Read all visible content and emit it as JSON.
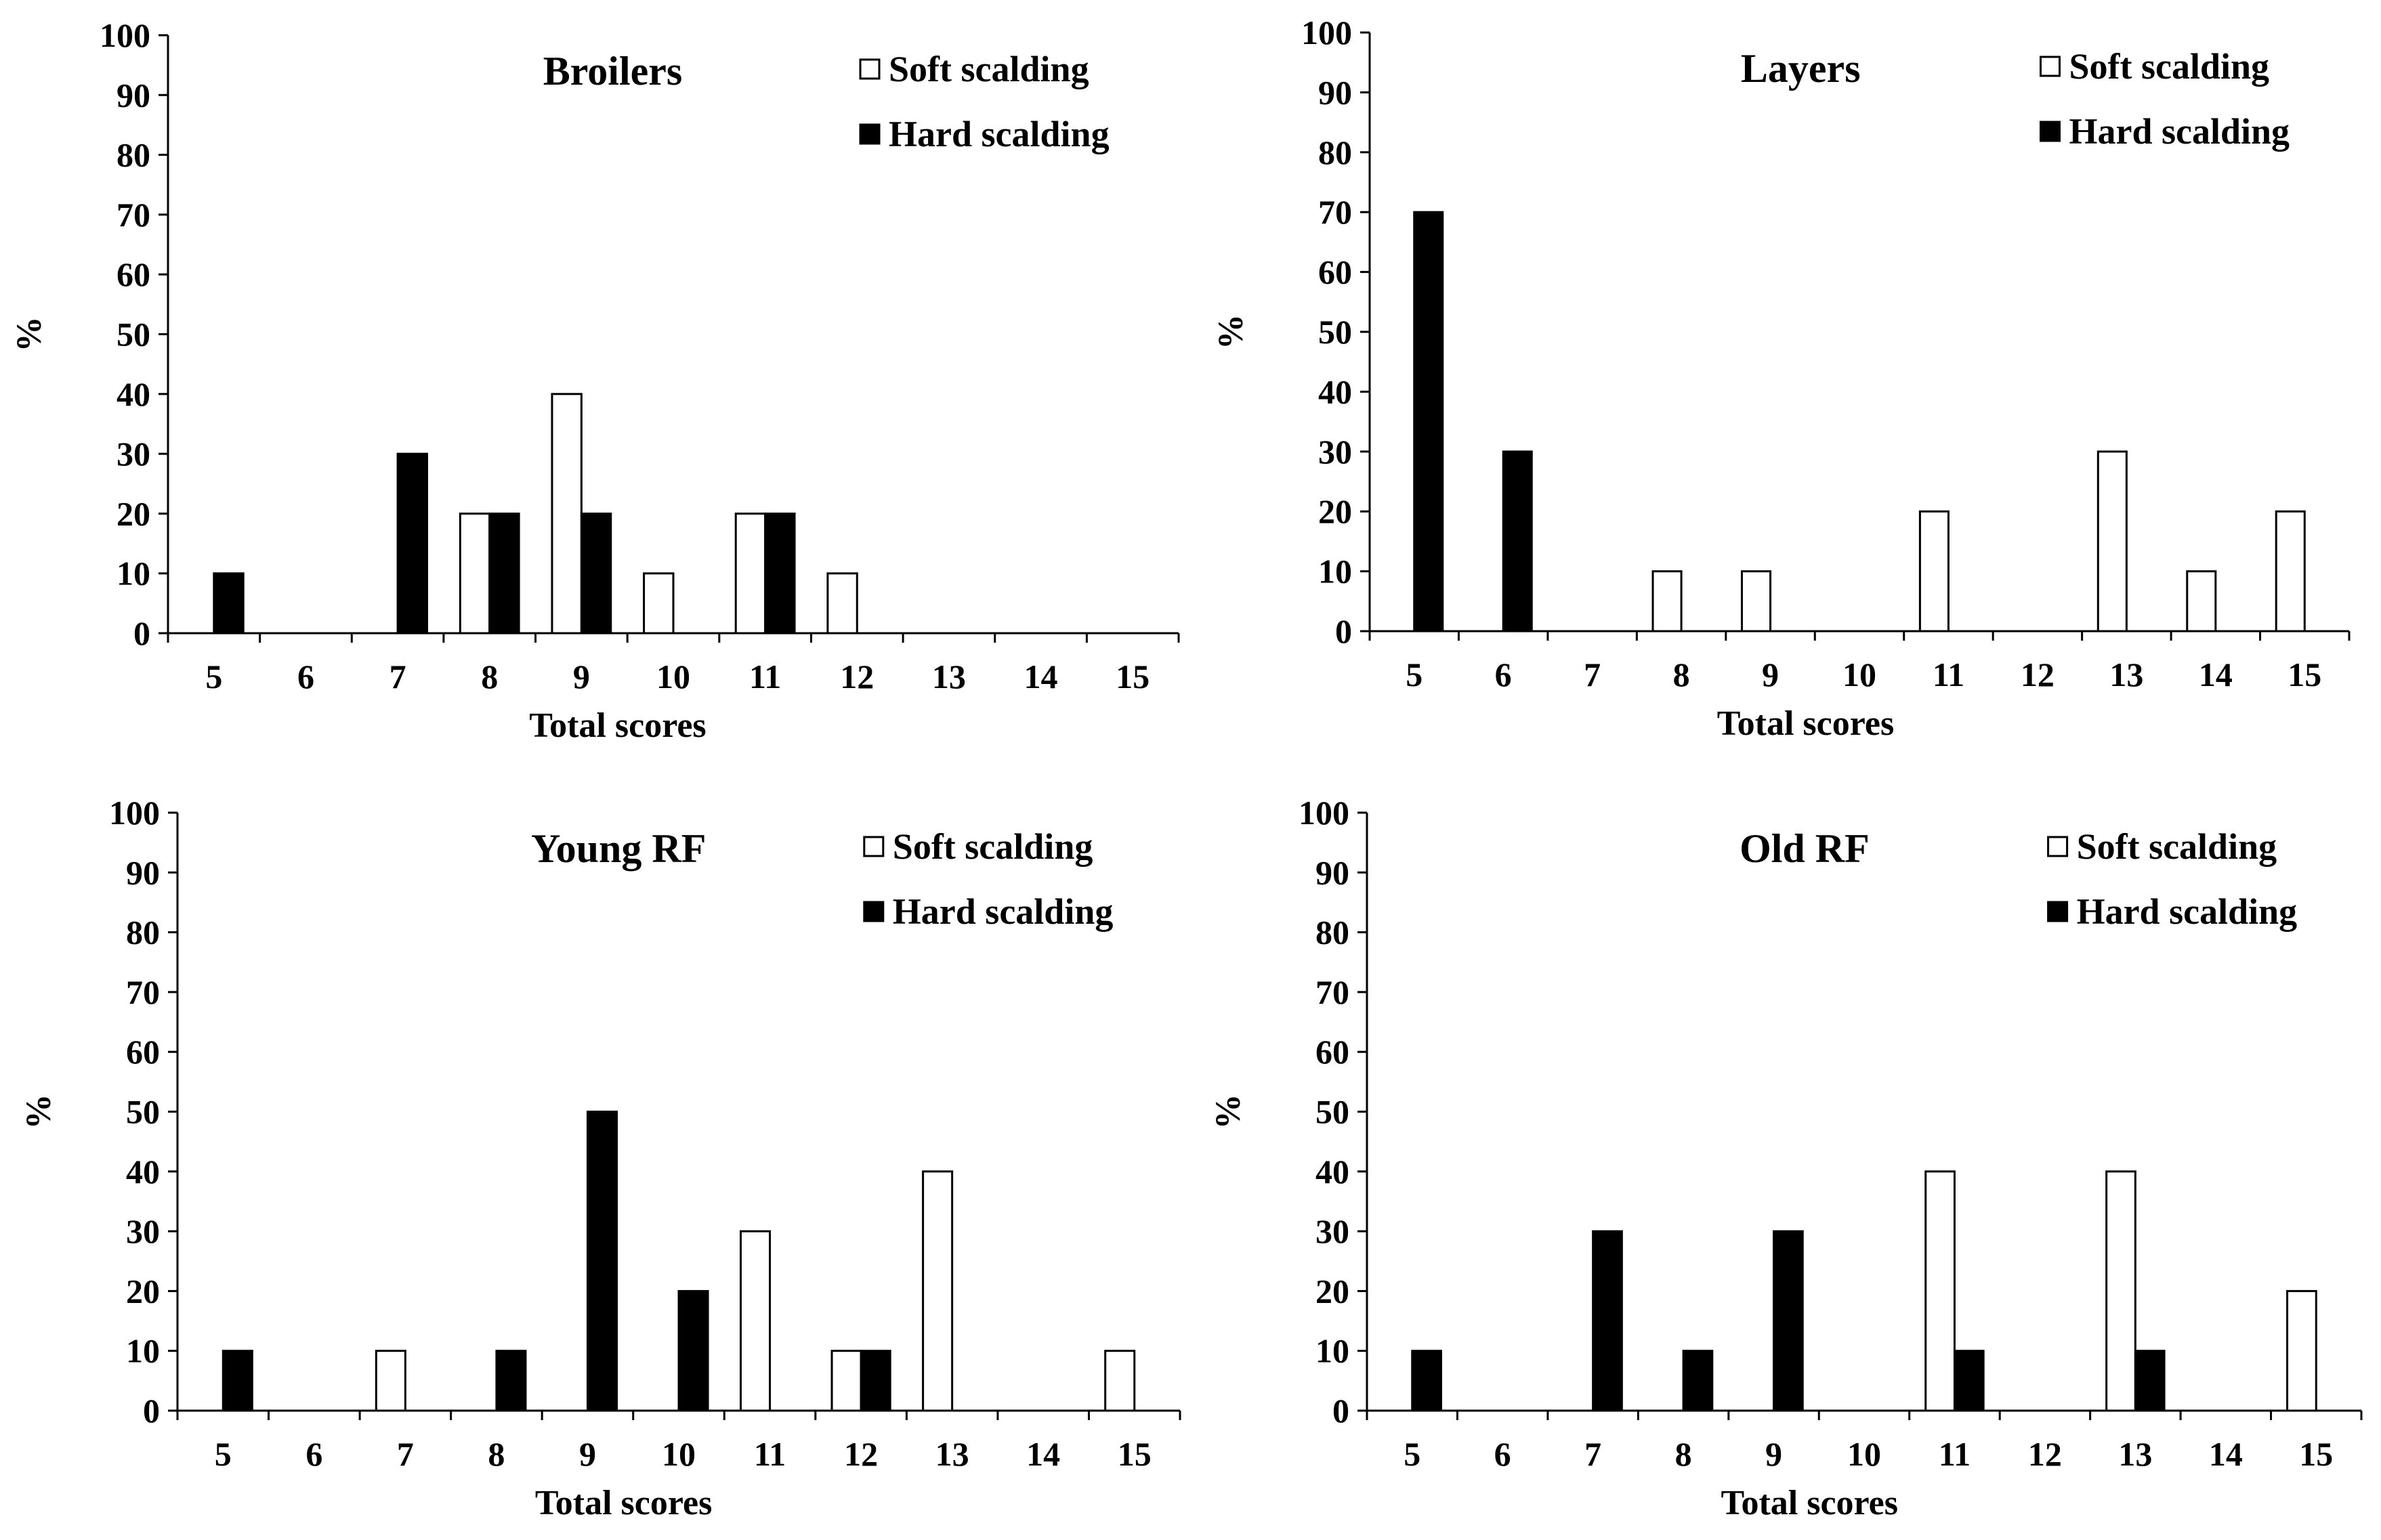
{
  "colors": {
    "soft": "#ffffff",
    "hard": "#000000",
    "stroke": "#000000"
  },
  "chart_data": [
    {
      "type": "bar",
      "title": "Broilers",
      "xlabel": "Total scores",
      "ylabel": "%",
      "ylim": [
        0,
        100
      ],
      "yticks": [
        "0",
        "10",
        "20",
        "30",
        "40",
        "50",
        "60",
        "70",
        "80",
        "90",
        "100"
      ],
      "categories": [
        "5",
        "6",
        "7",
        "8",
        "9",
        "10",
        "11",
        "12",
        "13",
        "14",
        "15"
      ],
      "legend": [
        "Soft scalding",
        "Hard scalding"
      ],
      "series": [
        {
          "name": "Soft scalding",
          "values": [
            0,
            0,
            0,
            20,
            40,
            10,
            20,
            10,
            0,
            0,
            0
          ]
        },
        {
          "name": "Hard scalding",
          "values": [
            10,
            0,
            30,
            20,
            20,
            0,
            20,
            0,
            0,
            0,
            0
          ]
        }
      ]
    },
    {
      "type": "bar",
      "title": "Layers",
      "xlabel": "Total scores",
      "ylabel": "%",
      "ylim": [
        0,
        100
      ],
      "yticks": [
        "0",
        "10",
        "20",
        "30",
        "40",
        "50",
        "60",
        "70",
        "80",
        "90",
        "100"
      ],
      "categories": [
        "5",
        "6",
        "7",
        "8",
        "9",
        "10",
        "11",
        "12",
        "13",
        "14",
        "15"
      ],
      "legend": [
        "Soft scalding",
        "Hard scalding"
      ],
      "series": [
        {
          "name": "Soft scalding",
          "values": [
            0,
            0,
            0,
            10,
            10,
            0,
            20,
            0,
            30,
            10,
            20
          ]
        },
        {
          "name": "Hard scalding",
          "values": [
            70,
            30,
            0,
            0,
            0,
            0,
            0,
            0,
            0,
            0,
            0
          ]
        }
      ]
    },
    {
      "type": "bar",
      "title": "Young RF",
      "xlabel": "Total scores",
      "ylabel": "%",
      "ylim": [
        0,
        100
      ],
      "yticks": [
        "0",
        "10",
        "20",
        "30",
        "40",
        "50",
        "60",
        "70",
        "80",
        "90",
        "100"
      ],
      "categories": [
        "5",
        "6",
        "7",
        "8",
        "9",
        "10",
        "11",
        "12",
        "13",
        "14",
        "15"
      ],
      "legend": [
        "Soft scalding",
        "Hard scalding"
      ],
      "series": [
        {
          "name": "Soft scalding",
          "values": [
            0,
            0,
            10,
            0,
            0,
            0,
            30,
            10,
            40,
            0,
            10
          ]
        },
        {
          "name": "Hard scalding",
          "values": [
            10,
            0,
            0,
            10,
            50,
            20,
            0,
            10,
            0,
            0,
            0
          ]
        }
      ]
    },
    {
      "type": "bar",
      "title": "Old RF",
      "xlabel": "Total scores",
      "ylabel": "%",
      "ylim": [
        0,
        100
      ],
      "yticks": [
        "0",
        "10",
        "20",
        "30",
        "40",
        "50",
        "60",
        "70",
        "80",
        "90",
        "100"
      ],
      "categories": [
        "5",
        "6",
        "7",
        "8",
        "9",
        "10",
        "11",
        "12",
        "13",
        "14",
        "15"
      ],
      "legend": [
        "Soft scalding",
        "Hard scalding"
      ],
      "series": [
        {
          "name": "Soft scalding",
          "values": [
            0,
            0,
            0,
            0,
            0,
            0,
            40,
            0,
            40,
            0,
            20
          ]
        },
        {
          "name": "Hard scalding",
          "values": [
            10,
            0,
            30,
            10,
            30,
            0,
            10,
            0,
            10,
            0,
            0
          ]
        }
      ]
    }
  ]
}
